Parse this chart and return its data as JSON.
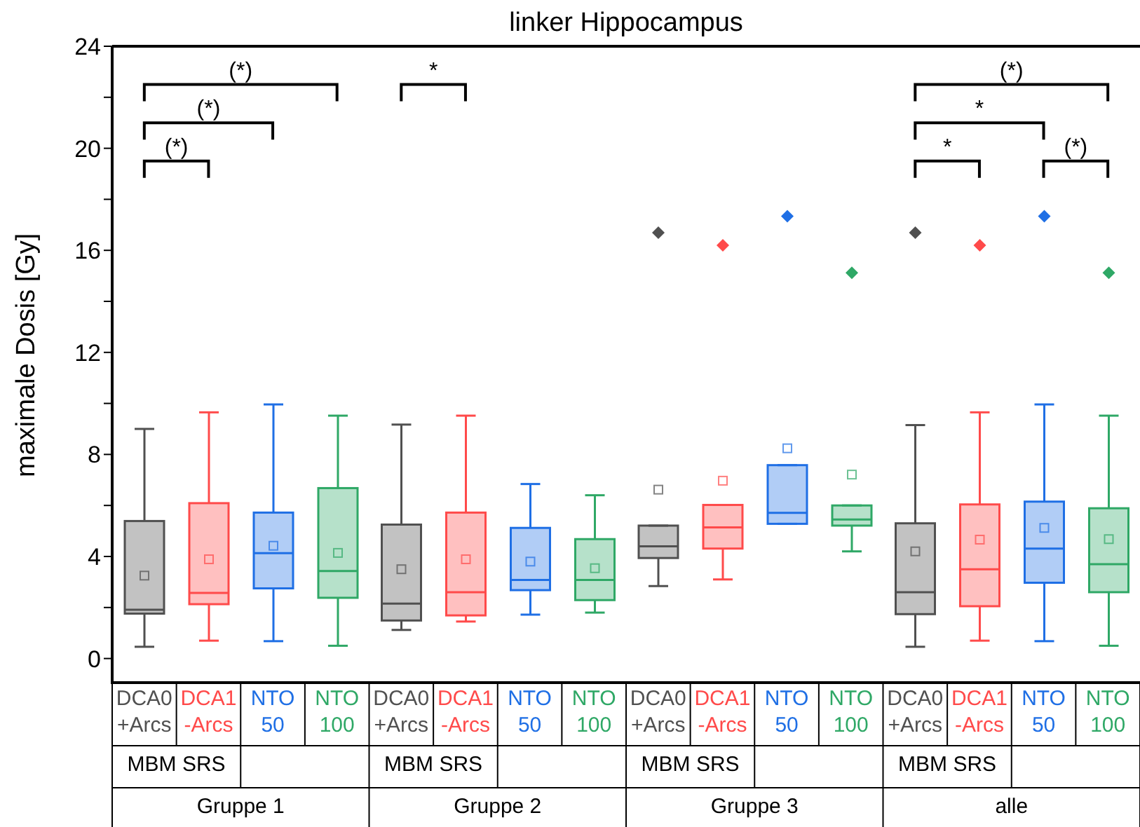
{
  "chart_data": {
    "type": "box",
    "title": "linker Hippocampus",
    "ylabel": "maximale Dosis [Gy]",
    "categories": [
      "Gruppe 1",
      "Gruppe 2",
      "Gruppe 3",
      "alle"
    ],
    "ylim": [
      -1,
      24
    ],
    "yticks": [
      0,
      {
        "value": 2,
        "label": null
      },
      4,
      {
        "value": 6,
        "label": null
      },
      8,
      {
        "value": 10,
        "label": null
      },
      12,
      {
        "value": 14,
        "label": null
      },
      16,
      {
        "value": 18,
        "label": null
      },
      20,
      {
        "value": 22,
        "label": null
      },
      24
    ],
    "series": [
      {
        "name": "DCA0 +Arcs",
        "color": "#505050",
        "boxes": [
          {
            "low": 0.46,
            "q1": 1.76,
            "median": 1.91,
            "q3": 5.39,
            "high": 9.0,
            "mean": 3.25
          },
          {
            "low": 1.12,
            "q1": 1.49,
            "median": 2.15,
            "q3": 5.25,
            "high": 9.17,
            "mean": 3.5
          },
          {
            "low": 2.84,
            "q1": 3.94,
            "median": 4.4,
            "q3": 5.21,
            "high": 5.21,
            "mean": 6.62,
            "outliers": [
              16.69
            ]
          },
          {
            "low": 0.46,
            "q1": 1.74,
            "median": 2.6,
            "q3": 5.3,
            "high": 9.15,
            "mean": 4.2,
            "outliers": [
              16.69
            ]
          }
        ]
      },
      {
        "name": "DCA1 -Arcs",
        "color": "#ff4a4a",
        "boxes": [
          {
            "low": 0.7,
            "q1": 2.13,
            "median": 2.57,
            "q3": 6.09,
            "high": 9.65,
            "mean": 3.89
          },
          {
            "low": 1.45,
            "q1": 1.69,
            "median": 2.6,
            "q3": 5.72,
            "high": 9.52,
            "mean": 3.89
          },
          {
            "low": 3.1,
            "q1": 4.31,
            "median": 5.14,
            "q3": 6.02,
            "high": 6.02,
            "mean": 6.97,
            "outliers": [
              16.2
            ]
          },
          {
            "low": 0.7,
            "q1": 2.05,
            "median": 3.5,
            "q3": 6.04,
            "high": 9.65,
            "mean": 4.66,
            "outliers": [
              16.2
            ]
          }
        ]
      },
      {
        "name": "NTO 50",
        "color": "#1f6fe5",
        "boxes": [
          {
            "low": 0.68,
            "q1": 2.75,
            "median": 4.13,
            "q3": 5.72,
            "high": 9.96,
            "mean": 4.42
          },
          {
            "low": 1.72,
            "q1": 2.68,
            "median": 3.08,
            "q3": 5.12,
            "high": 6.84,
            "mean": 3.8
          },
          {
            "low": 5.28,
            "q1": 5.28,
            "median": 5.71,
            "q3": 7.58,
            "high": 7.58,
            "mean": 8.24,
            "outliers": [
              17.34
            ]
          },
          {
            "low": 0.68,
            "q1": 2.97,
            "median": 4.31,
            "q3": 6.15,
            "high": 9.96,
            "mean": 5.12,
            "outliers": [
              17.34
            ]
          }
        ]
      },
      {
        "name": "NTO 100",
        "color": "#2fa866",
        "boxes": [
          {
            "low": 0.5,
            "q1": 2.38,
            "median": 3.43,
            "q3": 6.68,
            "high": 9.52,
            "mean": 4.14
          },
          {
            "low": 1.8,
            "q1": 2.29,
            "median": 3.08,
            "q3": 4.68,
            "high": 6.4,
            "mean": 3.54
          },
          {
            "low": 4.2,
            "q1": 5.21,
            "median": 5.45,
            "q3": 6.0,
            "high": 6.0,
            "mean": 7.21,
            "outliers": [
              15.12
            ]
          },
          {
            "low": 0.5,
            "q1": 2.6,
            "median": 3.7,
            "q3": 5.89,
            "high": 9.52,
            "mean": 4.68,
            "outliers": [
              15.12
            ]
          }
        ]
      }
    ],
    "annotations": [
      "(*)",
      "(*)",
      "(*)",
      "*",
      "*",
      "*",
      "(*)",
      "(*)",
      "MBM SRS",
      "MBM SRS",
      "MBM SRS",
      "MBM SRS"
    ]
  }
}
